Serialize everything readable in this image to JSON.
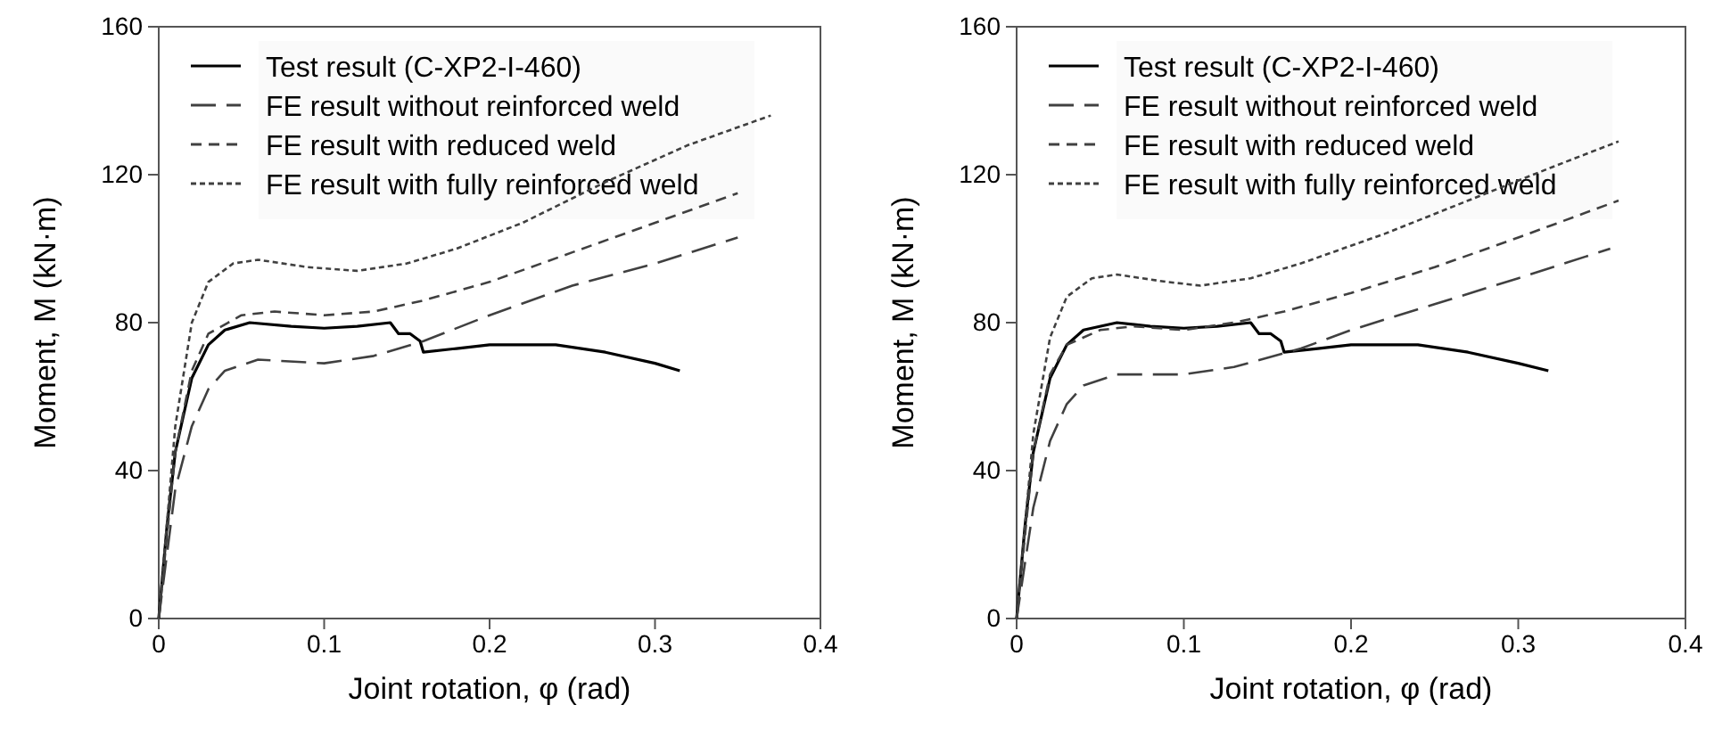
{
  "chart_data": [
    {
      "type": "line",
      "xlabel": "Joint rotation, φ (rad)",
      "ylabel": "Moment, M (kN·m)",
      "xlim": [
        0,
        0.4
      ],
      "xticks": [
        0,
        0.1,
        0.2,
        0.3,
        0.4
      ],
      "ylim": [
        0,
        160
      ],
      "yticks": [
        0,
        40,
        80,
        120,
        160
      ],
      "grid": false,
      "legend": "top left",
      "marker": "none",
      "series": [
        {
          "name": "Test result (C-XP2-I-460)",
          "color": "#000000",
          "line_style": "solid",
          "x": [
            0,
            0.005,
            0.01,
            0.02,
            0.03,
            0.04,
            0.055,
            0.08,
            0.1,
            0.12,
            0.14,
            0.145,
            0.152,
            0.158,
            0.16,
            0.18,
            0.2,
            0.24,
            0.27,
            0.3,
            0.315
          ],
          "values": [
            0,
            25,
            45,
            65,
            74,
            78,
            80,
            79,
            78.5,
            79,
            80,
            77,
            77,
            75,
            72,
            73,
            74,
            74,
            72,
            69,
            67
          ]
        },
        {
          "name": "FE result without reinforced weld",
          "color": "#404040",
          "line_style": "longdash",
          "x": [
            0,
            0.01,
            0.02,
            0.03,
            0.04,
            0.06,
            0.1,
            0.13,
            0.16,
            0.2,
            0.25,
            0.3,
            0.35
          ],
          "values": [
            0,
            35,
            52,
            62,
            67,
            70,
            69,
            71,
            75,
            82,
            90,
            96,
            103
          ]
        },
        {
          "name": "FE result with reduced weld",
          "color": "#404040",
          "line_style": "dashed",
          "x": [
            0,
            0.01,
            0.02,
            0.03,
            0.05,
            0.07,
            0.1,
            0.13,
            0.16,
            0.2,
            0.25,
            0.3,
            0.35
          ],
          "values": [
            0,
            45,
            67,
            77,
            82,
            83,
            82,
            83,
            86,
            91,
            99,
            107,
            115
          ]
        },
        {
          "name": "FE result with fully reinforced weld",
          "color": "#404040",
          "line_style": "dotted",
          "x": [
            0,
            0.01,
            0.02,
            0.03,
            0.045,
            0.06,
            0.09,
            0.12,
            0.15,
            0.18,
            0.22,
            0.27,
            0.32,
            0.37
          ],
          "values": [
            0,
            52,
            80,
            91,
            96,
            97,
            95,
            94,
            96,
            100,
            107,
            118,
            128,
            136
          ]
        }
      ]
    },
    {
      "type": "line",
      "xlabel": "Joint rotation, φ (rad)",
      "ylabel": "Moment, M (kN·m)",
      "xlim": [
        0,
        0.4
      ],
      "xticks": [
        0,
        0.1,
        0.2,
        0.3,
        0.4
      ],
      "ylim": [
        0,
        160
      ],
      "yticks": [
        0,
        40,
        80,
        120,
        160
      ],
      "grid": false,
      "legend": "top left",
      "marker": "none",
      "series": [
        {
          "name": "Test result (C-XP2-I-460)",
          "color": "#000000",
          "line_style": "solid",
          "x": [
            0,
            0.005,
            0.01,
            0.02,
            0.03,
            0.04,
            0.06,
            0.08,
            0.1,
            0.12,
            0.14,
            0.145,
            0.152,
            0.158,
            0.16,
            0.18,
            0.2,
            0.24,
            0.27,
            0.3,
            0.318
          ],
          "values": [
            0,
            25,
            45,
            65,
            74,
            78,
            80,
            79,
            78.5,
            79,
            80,
            77,
            77,
            75,
            72,
            73,
            74,
            74,
            72,
            69,
            67
          ]
        },
        {
          "name": "FE result without reinforced weld",
          "color": "#404040",
          "line_style": "longdash",
          "x": [
            0,
            0.01,
            0.02,
            0.03,
            0.04,
            0.06,
            0.1,
            0.13,
            0.17,
            0.2,
            0.25,
            0.3,
            0.355
          ],
          "values": [
            0,
            30,
            48,
            58,
            63,
            66,
            66,
            68,
            73,
            78,
            85,
            92,
            100
          ]
        },
        {
          "name": "FE result with reduced weld",
          "color": "#404040",
          "line_style": "dashed",
          "x": [
            0,
            0.01,
            0.02,
            0.03,
            0.05,
            0.07,
            0.1,
            0.13,
            0.16,
            0.2,
            0.25,
            0.3,
            0.36
          ],
          "values": [
            0,
            45,
            66,
            74,
            78,
            79,
            78,
            80,
            83,
            88,
            95,
            103,
            113
          ]
        },
        {
          "name": "FE result with fully reinforced weld",
          "color": "#404040",
          "line_style": "dotted",
          "x": [
            0,
            0.01,
            0.02,
            0.03,
            0.045,
            0.06,
            0.09,
            0.11,
            0.14,
            0.17,
            0.22,
            0.27,
            0.32,
            0.36
          ],
          "values": [
            0,
            50,
            76,
            87,
            92,
            93,
            91,
            90,
            92,
            96,
            104,
            113,
            122,
            129
          ]
        }
      ]
    }
  ]
}
